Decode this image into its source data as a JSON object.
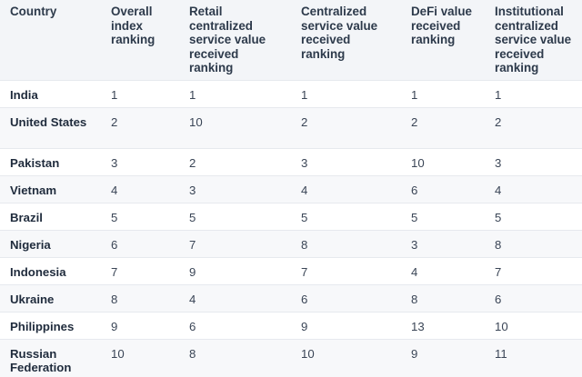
{
  "table": {
    "headers": [
      "Country",
      "Overall index ranking",
      "Retail centralized service value received ranking",
      "Centralized service value received ranking",
      "DeFi value received ranking",
      "Institutional centralized service value received ranking"
    ],
    "rows": [
      {
        "country": "India",
        "cells": [
          "1",
          "1",
          "1",
          "1",
          "1"
        ]
      },
      {
        "country": "United States",
        "cells": [
          "2",
          "10",
          "2",
          "2",
          "2"
        ]
      },
      {
        "country": "Pakistan",
        "cells": [
          "3",
          "2",
          "3",
          "10",
          "3"
        ]
      },
      {
        "country": "Vietnam",
        "cells": [
          "4",
          "3",
          "4",
          "6",
          "4"
        ]
      },
      {
        "country": "Brazil",
        "cells": [
          "5",
          "5",
          "5",
          "5",
          "5"
        ]
      },
      {
        "country": "Nigeria",
        "cells": [
          "6",
          "7",
          "8",
          "3",
          "8"
        ]
      },
      {
        "country": "Indonesia",
        "cells": [
          "7",
          "9",
          "7",
          "4",
          "7"
        ]
      },
      {
        "country": "Ukraine",
        "cells": [
          "8",
          "4",
          "6",
          "8",
          "6"
        ]
      },
      {
        "country": "Philippines",
        "cells": [
          "9",
          "6",
          "9",
          "13",
          "10"
        ]
      },
      {
        "country": "Russian Federation",
        "cells": [
          "10",
          "8",
          "10",
          "9",
          "11"
        ]
      }
    ]
  }
}
